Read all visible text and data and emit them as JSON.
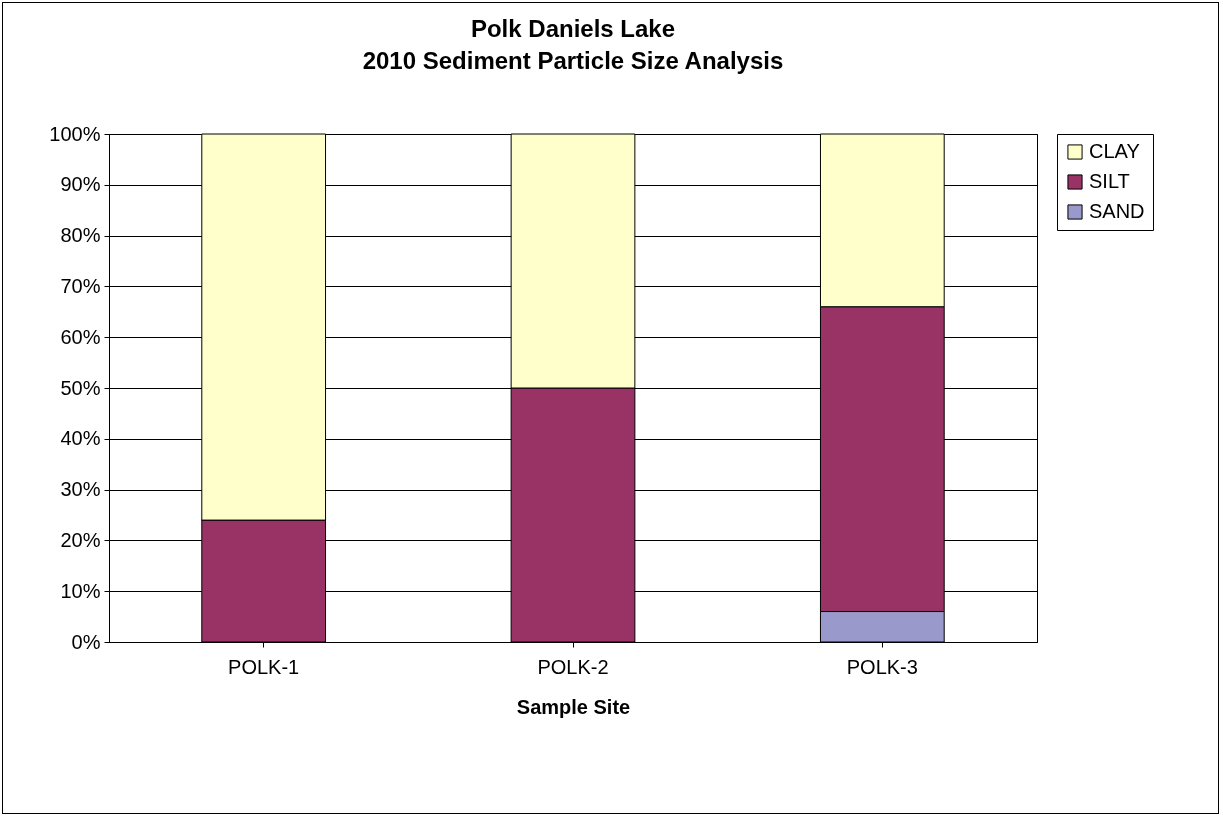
{
  "chart_data": {
    "type": "bar",
    "title": "Polk Daniels Lake",
    "subtitle": "2010 Sediment Particle Size Analysis",
    "xlabel": "Sample Site",
    "categories": [
      "POLK-1",
      "POLK-2",
      "POLK-3"
    ],
    "stacked": true,
    "series": [
      {
        "name": "SAND",
        "color": "#9999cc",
        "values": [
          0,
          0,
          6
        ]
      },
      {
        "name": "SILT",
        "color": "#993366",
        "values": [
          24,
          50,
          60
        ]
      },
      {
        "name": "CLAY",
        "color": "#ffffcc",
        "values": [
          76,
          50,
          34
        ]
      }
    ],
    "ylim": [
      0,
      100
    ],
    "yticks": [
      {
        "value": 0,
        "label": "0%"
      },
      {
        "value": 10,
        "label": "10%"
      },
      {
        "value": 20,
        "label": "20%"
      },
      {
        "value": 30,
        "label": "30%"
      },
      {
        "value": 40,
        "label": "40%"
      },
      {
        "value": 50,
        "label": "50%"
      },
      {
        "value": 60,
        "label": "60%"
      },
      {
        "value": 70,
        "label": "70%"
      },
      {
        "value": 80,
        "label": "80%"
      },
      {
        "value": 90,
        "label": "90%"
      },
      {
        "value": 100,
        "label": "100%"
      }
    ],
    "grid": "y",
    "legend": "right"
  }
}
